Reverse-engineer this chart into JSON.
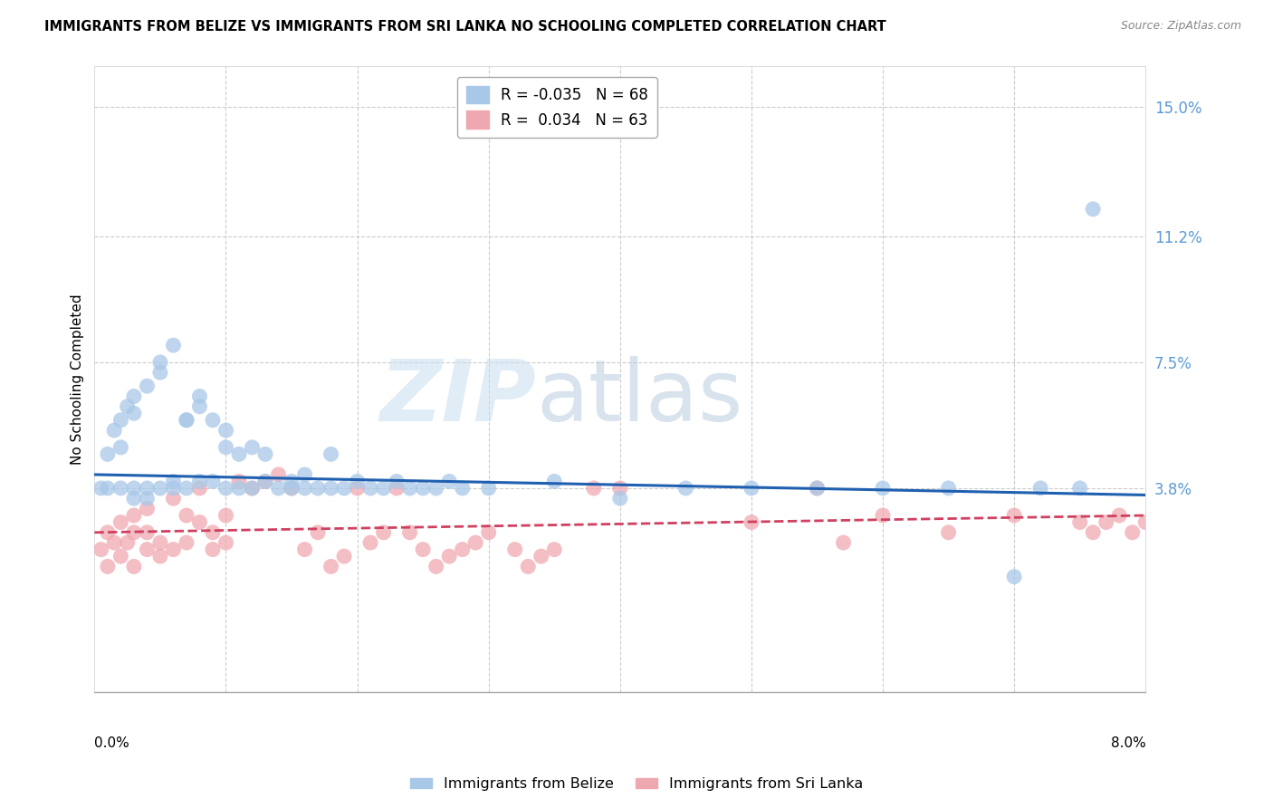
{
  "title": "IMMIGRANTS FROM BELIZE VS IMMIGRANTS FROM SRI LANKA NO SCHOOLING COMPLETED CORRELATION CHART",
  "source": "Source: ZipAtlas.com",
  "ylabel": "No Schooling Completed",
  "ytick_labels": [
    "3.8%",
    "7.5%",
    "11.2%",
    "15.0%"
  ],
  "ytick_values": [
    0.038,
    0.075,
    0.112,
    0.15
  ],
  "xmin": 0.0,
  "xmax": 0.08,
  "ymin": -0.022,
  "ymax": 0.162,
  "legend_belize": "R = -0.035   N = 68",
  "legend_srilanka": "R =  0.034   N = 63",
  "color_belize": "#a8c8e8",
  "color_srilanka": "#f0a8b0",
  "trendline_belize_color": "#2060b0",
  "trendline_srilanka_color": "#d04060",
  "watermark_zip": "ZIP",
  "watermark_atlas": "atlas",
  "belize_x": [
    0.0005,
    0.001,
    0.001,
    0.0015,
    0.002,
    0.002,
    0.002,
    0.0025,
    0.003,
    0.003,
    0.003,
    0.003,
    0.004,
    0.004,
    0.004,
    0.005,
    0.005,
    0.005,
    0.006,
    0.006,
    0.006,
    0.007,
    0.007,
    0.007,
    0.008,
    0.008,
    0.008,
    0.009,
    0.009,
    0.01,
    0.01,
    0.01,
    0.011,
    0.011,
    0.012,
    0.012,
    0.013,
    0.013,
    0.014,
    0.015,
    0.015,
    0.016,
    0.016,
    0.017,
    0.018,
    0.018,
    0.019,
    0.02,
    0.021,
    0.022,
    0.023,
    0.024,
    0.025,
    0.026,
    0.027,
    0.028,
    0.03,
    0.035,
    0.04,
    0.045,
    0.05,
    0.055,
    0.06,
    0.065,
    0.07,
    0.072,
    0.075,
    0.076
  ],
  "belize_y": [
    0.038,
    0.048,
    0.038,
    0.055,
    0.05,
    0.058,
    0.038,
    0.062,
    0.06,
    0.065,
    0.038,
    0.035,
    0.068,
    0.038,
    0.035,
    0.075,
    0.072,
    0.038,
    0.08,
    0.038,
    0.04,
    0.058,
    0.058,
    0.038,
    0.065,
    0.062,
    0.04,
    0.058,
    0.04,
    0.055,
    0.05,
    0.038,
    0.048,
    0.038,
    0.05,
    0.038,
    0.048,
    0.04,
    0.038,
    0.04,
    0.038,
    0.038,
    0.042,
    0.038,
    0.048,
    0.038,
    0.038,
    0.04,
    0.038,
    0.038,
    0.04,
    0.038,
    0.038,
    0.038,
    0.04,
    0.038,
    0.038,
    0.04,
    0.035,
    0.038,
    0.038,
    0.038,
    0.038,
    0.038,
    0.012,
    0.038,
    0.038,
    0.12
  ],
  "srilanka_x": [
    0.0005,
    0.001,
    0.001,
    0.0015,
    0.002,
    0.002,
    0.0025,
    0.003,
    0.003,
    0.003,
    0.004,
    0.004,
    0.004,
    0.005,
    0.005,
    0.006,
    0.006,
    0.007,
    0.007,
    0.008,
    0.008,
    0.009,
    0.009,
    0.01,
    0.01,
    0.011,
    0.012,
    0.013,
    0.014,
    0.015,
    0.016,
    0.017,
    0.018,
    0.019,
    0.02,
    0.021,
    0.022,
    0.023,
    0.024,
    0.025,
    0.026,
    0.027,
    0.028,
    0.029,
    0.03,
    0.032,
    0.033,
    0.034,
    0.035,
    0.038,
    0.04,
    0.05,
    0.055,
    0.057,
    0.06,
    0.065,
    0.07,
    0.075,
    0.076,
    0.077,
    0.078,
    0.079,
    0.08
  ],
  "srilanka_y": [
    0.02,
    0.025,
    0.015,
    0.022,
    0.018,
    0.028,
    0.022,
    0.015,
    0.03,
    0.025,
    0.032,
    0.02,
    0.025,
    0.022,
    0.018,
    0.035,
    0.02,
    0.03,
    0.022,
    0.038,
    0.028,
    0.025,
    0.02,
    0.03,
    0.022,
    0.04,
    0.038,
    0.04,
    0.042,
    0.038,
    0.02,
    0.025,
    0.015,
    0.018,
    0.038,
    0.022,
    0.025,
    0.038,
    0.025,
    0.02,
    0.015,
    0.018,
    0.02,
    0.022,
    0.025,
    0.02,
    0.015,
    0.018,
    0.02,
    0.038,
    0.038,
    0.028,
    0.038,
    0.022,
    0.03,
    0.025,
    0.03,
    0.028,
    0.025,
    0.028,
    0.03,
    0.025,
    0.028
  ]
}
